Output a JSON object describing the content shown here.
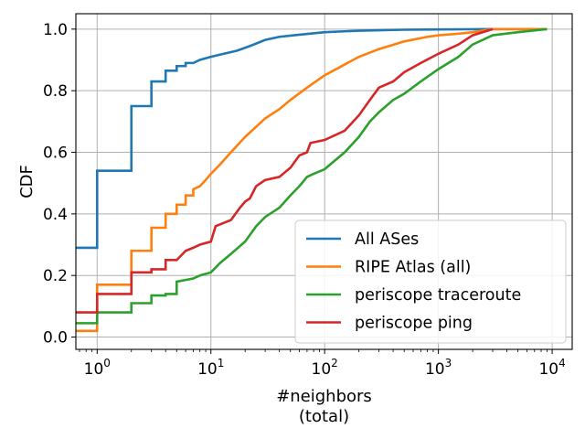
{
  "chart_data": {
    "type": "line",
    "title": "",
    "xlabel": [
      "#neighbors",
      "(total)"
    ],
    "ylabel": "CDF",
    "xscale": "log",
    "xlim": [
      0.65,
      15000
    ],
    "ylim": [
      -0.04,
      1.05
    ],
    "grid": true,
    "legend_position": "bottom-right",
    "x_ticks": [
      {
        "value": 1,
        "base": "10",
        "exp": "0"
      },
      {
        "value": 10,
        "base": "10",
        "exp": "1"
      },
      {
        "value": 100,
        "base": "10",
        "exp": "2"
      },
      {
        "value": 1000,
        "base": "10",
        "exp": "3"
      },
      {
        "value": 10000,
        "base": "10",
        "exp": "4"
      }
    ],
    "y_ticks": [
      {
        "value": 0.0,
        "label": "0.0"
      },
      {
        "value": 0.2,
        "label": "0.2"
      },
      {
        "value": 0.4,
        "label": "0.4"
      },
      {
        "value": 0.6,
        "label": "0.6"
      },
      {
        "value": 0.8,
        "label": "0.8"
      },
      {
        "value": 1.0,
        "label": "1.0"
      }
    ],
    "series": [
      {
        "name": "All ASes",
        "color": "#1f77b4",
        "points": [
          [
            0.65,
            0.29
          ],
          [
            1,
            0.29
          ],
          [
            1,
            0.54
          ],
          [
            2,
            0.54
          ],
          [
            2,
            0.75
          ],
          [
            3,
            0.75
          ],
          [
            3,
            0.83
          ],
          [
            4,
            0.83
          ],
          [
            4,
            0.865
          ],
          [
            5,
            0.865
          ],
          [
            5,
            0.88
          ],
          [
            6,
            0.88
          ],
          [
            6,
            0.89
          ],
          [
            7,
            0.89
          ],
          [
            8,
            0.9
          ],
          [
            10,
            0.91
          ],
          [
            13,
            0.92
          ],
          [
            17,
            0.93
          ],
          [
            22,
            0.945
          ],
          [
            30,
            0.965
          ],
          [
            40,
            0.975
          ],
          [
            60,
            0.982
          ],
          [
            100,
            0.99
          ],
          [
            200,
            0.995
          ],
          [
            500,
            0.998
          ],
          [
            1000,
            0.999
          ],
          [
            3000,
            1.0
          ],
          [
            9000,
            1.0
          ]
        ]
      },
      {
        "name": "RIPE Atlas (all)",
        "color": "#ff7f0e",
        "points": [
          [
            0.65,
            0.02
          ],
          [
            1,
            0.02
          ],
          [
            1,
            0.17
          ],
          [
            2,
            0.17
          ],
          [
            2,
            0.28
          ],
          [
            3,
            0.28
          ],
          [
            3,
            0.355
          ],
          [
            4,
            0.355
          ],
          [
            4,
            0.4
          ],
          [
            5,
            0.4
          ],
          [
            5,
            0.43
          ],
          [
            6,
            0.43
          ],
          [
            6,
            0.46
          ],
          [
            7,
            0.46
          ],
          [
            7,
            0.48
          ],
          [
            8,
            0.49
          ],
          [
            9,
            0.51
          ],
          [
            10,
            0.53
          ],
          [
            12,
            0.56
          ],
          [
            15,
            0.6
          ],
          [
            20,
            0.65
          ],
          [
            30,
            0.71
          ],
          [
            40,
            0.74
          ],
          [
            50,
            0.77
          ],
          [
            70,
            0.81
          ],
          [
            100,
            0.85
          ],
          [
            150,
            0.885
          ],
          [
            200,
            0.91
          ],
          [
            300,
            0.935
          ],
          [
            500,
            0.96
          ],
          [
            800,
            0.975
          ],
          [
            1000,
            0.98
          ],
          [
            1500,
            0.985
          ],
          [
            2000,
            0.99
          ],
          [
            3000,
            1.0
          ],
          [
            9000,
            1.0
          ]
        ]
      },
      {
        "name": "periscope traceroute",
        "color": "#2ca02c",
        "points": [
          [
            0.65,
            0.045
          ],
          [
            1,
            0.045
          ],
          [
            1,
            0.08
          ],
          [
            2,
            0.08
          ],
          [
            2,
            0.11
          ],
          [
            3,
            0.11
          ],
          [
            3,
            0.135
          ],
          [
            4,
            0.135
          ],
          [
            4,
            0.14
          ],
          [
            5,
            0.14
          ],
          [
            5,
            0.18
          ],
          [
            7,
            0.19
          ],
          [
            8,
            0.2
          ],
          [
            10,
            0.21
          ],
          [
            12,
            0.24
          ],
          [
            15,
            0.27
          ],
          [
            20,
            0.31
          ],
          [
            25,
            0.36
          ],
          [
            30,
            0.39
          ],
          [
            40,
            0.42
          ],
          [
            50,
            0.46
          ],
          [
            60,
            0.49
          ],
          [
            70,
            0.52
          ],
          [
            80,
            0.53
          ],
          [
            100,
            0.545
          ],
          [
            120,
            0.57
          ],
          [
            150,
            0.6
          ],
          [
            200,
            0.65
          ],
          [
            250,
            0.7
          ],
          [
            300,
            0.73
          ],
          [
            400,
            0.77
          ],
          [
            500,
            0.79
          ],
          [
            700,
            0.83
          ],
          [
            1000,
            0.87
          ],
          [
            1500,
            0.91
          ],
          [
            2000,
            0.95
          ],
          [
            3000,
            0.98
          ],
          [
            5000,
            0.99
          ],
          [
            9000,
            1.0
          ]
        ]
      },
      {
        "name": "periscope ping",
        "color": "#d62728",
        "points": [
          [
            0.65,
            0.08
          ],
          [
            1,
            0.08
          ],
          [
            1,
            0.14
          ],
          [
            2,
            0.14
          ],
          [
            2,
            0.21
          ],
          [
            3,
            0.21
          ],
          [
            3,
            0.22
          ],
          [
            4,
            0.22
          ],
          [
            4,
            0.25
          ],
          [
            5,
            0.25
          ],
          [
            6,
            0.28
          ],
          [
            7,
            0.29
          ],
          [
            8,
            0.3
          ],
          [
            10,
            0.31
          ],
          [
            11,
            0.36
          ],
          [
            15,
            0.38
          ],
          [
            18,
            0.42
          ],
          [
            20,
            0.44
          ],
          [
            22,
            0.45
          ],
          [
            25,
            0.49
          ],
          [
            30,
            0.51
          ],
          [
            40,
            0.52
          ],
          [
            50,
            0.55
          ],
          [
            60,
            0.59
          ],
          [
            70,
            0.6
          ],
          [
            75,
            0.63
          ],
          [
            100,
            0.64
          ],
          [
            150,
            0.67
          ],
          [
            200,
            0.72
          ],
          [
            250,
            0.77
          ],
          [
            300,
            0.81
          ],
          [
            400,
            0.83
          ],
          [
            500,
            0.86
          ],
          [
            700,
            0.89
          ],
          [
            1000,
            0.92
          ],
          [
            1500,
            0.95
          ],
          [
            2000,
            0.98
          ],
          [
            3000,
            1.0
          ]
        ]
      }
    ]
  }
}
